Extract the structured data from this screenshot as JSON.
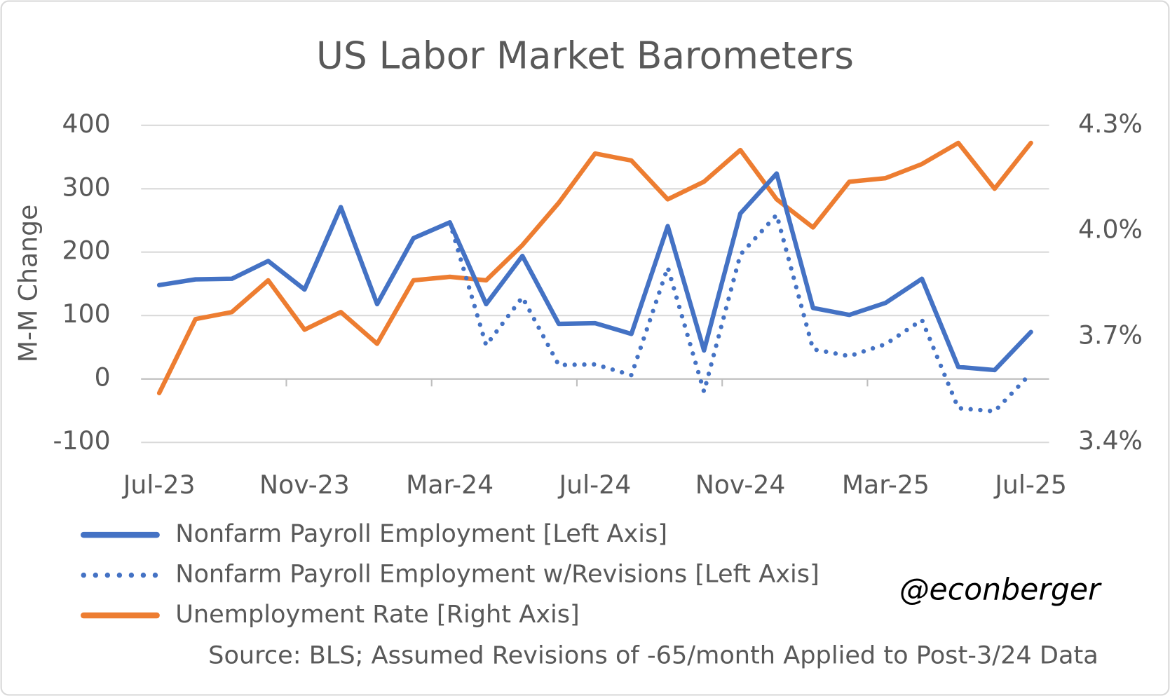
{
  "chart_data": {
    "type": "line",
    "title": "US Labor Market Barometers",
    "y_label": "M-M Change",
    "categories": [
      "Jul-23",
      null,
      null,
      null,
      "Nov-23",
      null,
      null,
      null,
      "Mar-24",
      null,
      null,
      null,
      "Jul-24",
      null,
      null,
      null,
      "Nov-24",
      null,
      null,
      null,
      "Mar-25",
      null,
      null,
      null,
      "Jul-25"
    ],
    "series": [
      {
        "name": "Nonfarm Payroll Employment [Left Axis]",
        "color": "#4472c4",
        "style": "solid",
        "axis": "y",
        "values": [
          148,
          157,
          158,
          186,
          141,
          271,
          118,
          222,
          247,
          118,
          194,
          87,
          88,
          71,
          241,
          45,
          261,
          324,
          112,
          101,
          120,
          158,
          19,
          14,
          74
        ]
      },
      {
        "name": "Nonfarm Payroll Employment w/Revisions [Left Axis]",
        "color": "#4472c4",
        "style": "dotted",
        "axis": "y",
        "values": [
          null,
          null,
          null,
          null,
          null,
          null,
          null,
          null,
          247,
          53,
          129,
          22,
          23,
          6,
          176,
          -20,
          196,
          259,
          47,
          36,
          55,
          93,
          -46,
          -51,
          9
        ]
      },
      {
        "name": "Unemployment Rate [Right Axis]",
        "color": "#ed7d31",
        "style": "solid",
        "axis": "y2",
        "values": [
          3.54,
          3.75,
          3.77,
          3.86,
          3.72,
          3.77,
          3.68,
          3.86,
          3.87,
          3.86,
          3.96,
          4.08,
          4.22,
          4.2,
          4.09,
          4.14,
          4.23,
          4.09,
          4.01,
          4.14,
          4.15,
          4.19,
          4.25,
          4.12,
          4.25
        ]
      }
    ],
    "ylim": [
      -100,
      400
    ],
    "yticks": [
      -100,
      0,
      100,
      200,
      300,
      400
    ],
    "y2lim": [
      3.4,
      4.3
    ],
    "y2ticks": [
      {
        "value": 3.4,
        "label": "3.4%"
      },
      {
        "value": 3.7,
        "label": "3.7%"
      },
      {
        "value": 4.0,
        "label": "4.0%"
      },
      {
        "value": 4.3,
        "label": "4.3%"
      }
    ],
    "grid": true,
    "source": "Source: BLS; Assumed Revisions of -65/month Applied to Post-3/24 Data",
    "watermark": "@econberger"
  }
}
